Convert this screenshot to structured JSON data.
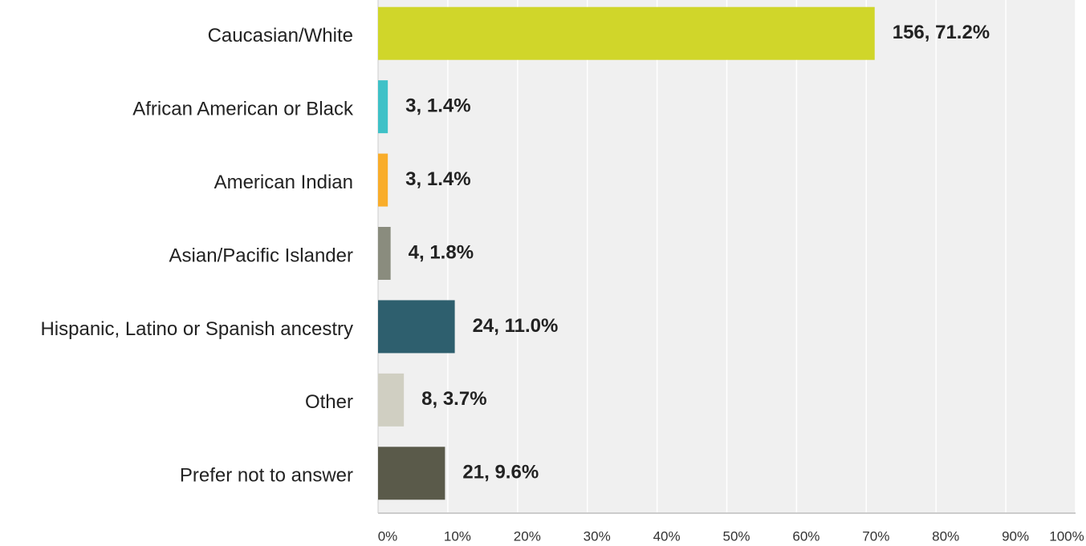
{
  "chart_data": {
    "type": "bar",
    "orientation": "horizontal",
    "categories": [
      "Caucasian/White",
      "African American or Black",
      "American Indian",
      "Asian/Pacific Islander",
      "Hispanic, Latino or Spanish ancestry",
      "Other",
      "Prefer not to answer"
    ],
    "values": [
      71.2,
      1.4,
      1.4,
      1.8,
      11.0,
      3.7,
      9.6
    ],
    "value_labels": [
      "156, 71.2%",
      "3, 1.4%",
      "3, 1.4%",
      "4, 1.8%",
      "24, 11.0%",
      "8, 3.7%",
      "21, 9.6%"
    ],
    "colors": [
      "#d0d62a",
      "#3ec1c7",
      "#f9ad2a",
      "#8a8c7e",
      "#2e5f6e",
      "#d0cfc2",
      "#5a5a4a"
    ],
    "xlim": [
      0,
      100
    ],
    "xticks": [
      {
        "value": 0,
        "label": "0%"
      },
      {
        "value": 10,
        "label": "10%"
      },
      {
        "value": 20,
        "label": "20%"
      },
      {
        "value": 30,
        "label": "30%"
      },
      {
        "value": 40,
        "label": "40%"
      },
      {
        "value": 50,
        "label": "50%"
      },
      {
        "value": 60,
        "label": "60%"
      },
      {
        "value": 70,
        "label": "70%"
      },
      {
        "value": 80,
        "label": "80%"
      },
      {
        "value": 90,
        "label": "90%"
      },
      {
        "value": 100,
        "label": "100%"
      }
    ],
    "grid": true
  }
}
